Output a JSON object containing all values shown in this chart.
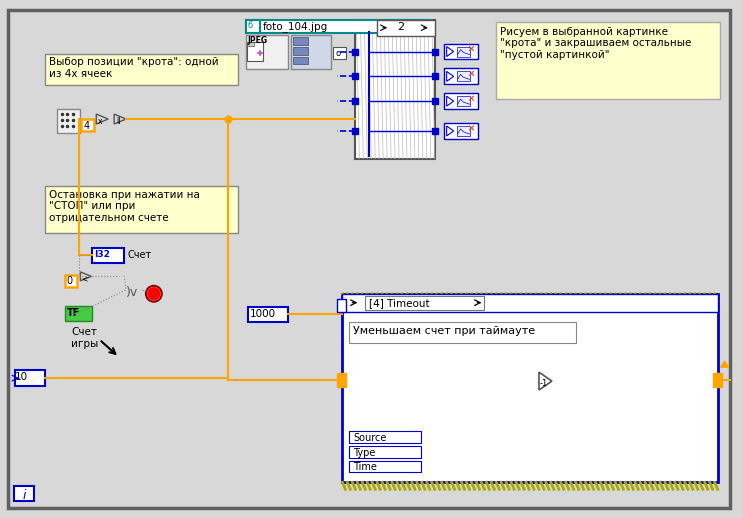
{
  "bg_color": "#d8d8d8",
  "inner_bg": "#ffffff",
  "border_color": "#707070",
  "orange_wire": "#FFA500",
  "blue_wire": "#0000CD",
  "teal_color": "#008B8B",
  "note_bg": "#FFFFCC",
  "note_border": "#AAAAAA",
  "label1_text": "Выбор позиции \"крота\": одной\nиз 4х ячеек",
  "label2_text": "Остановка при нажатии на\n\"СТОП\" или при\nотрицательном счете",
  "label3_text": "Рисуем в выбранной картинке\n\"крота\" и закрашиваем остальные\n\"пустой картинкой\"",
  "label4_text": "Уменьшаем счет при таймауте",
  "filename_text": "foto_104.jpg",
  "num2_text": "2",
  "num4_text": "4",
  "num0_text": "0",
  "num10_text": "10",
  "num1000_text": "1000",
  "i32_text": "I32",
  "schet_text": "Счет",
  "tf_text": "TF",
  "schet_igry_text": "Счет\nигры",
  "timeout_text": "[4] Timeout",
  "source_text": "Source",
  "type_text": "Type",
  "time_text": "Time",
  "i_text": "i"
}
